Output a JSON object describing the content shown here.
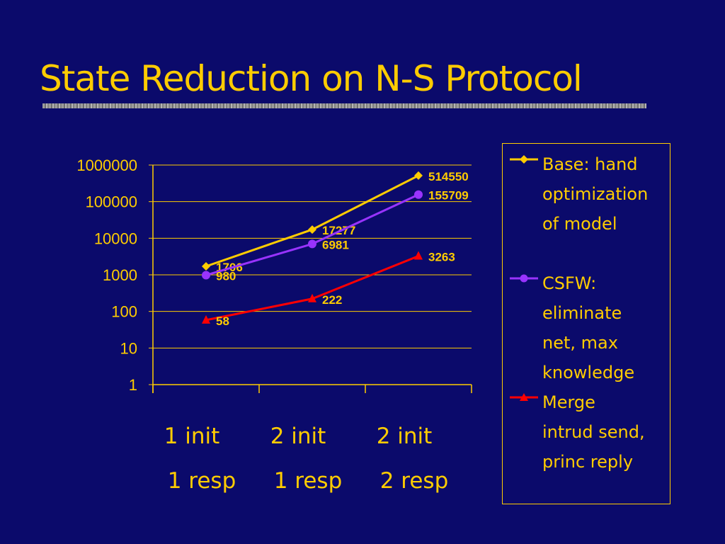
{
  "slide": {
    "title": "State Reduction on N-S Protocol"
  },
  "colors": {
    "background": "#0b0a6b",
    "text": "#ffcc00",
    "grid": "#ffcc00"
  },
  "chart_data": {
    "type": "line",
    "y_scale": "log",
    "ylim": [
      1,
      1000000
    ],
    "y_ticks": [
      "1000000",
      "100000",
      "10000",
      "1000",
      "100",
      "10",
      "1"
    ],
    "categories": [
      {
        "line1": "1 init",
        "line2": "1 resp"
      },
      {
        "line1": "2 init",
        "line2": "1 resp"
      },
      {
        "line1": "2 init",
        "line2": "2 resp"
      }
    ],
    "grid": true,
    "legend_position": "right",
    "series": [
      {
        "name": "Base: hand optimization of model",
        "legend_text": "Base: hand\noptimization\nof model",
        "values": [
          1706,
          17277,
          514550
        ],
        "labels": [
          "1706",
          "17277",
          "514550"
        ],
        "color": "#ffcc00",
        "marker": "diamond"
      },
      {
        "name": "CSFW: eliminate net, max knowledge",
        "legend_text": "CSFW:\neliminate\nnet, max\nknowledge",
        "values": [
          980,
          6981,
          155709
        ],
        "labels": [
          "980",
          "6981",
          "155709"
        ],
        "color": "#9933ff",
        "marker": "circle"
      },
      {
        "name": "Merge intrud send, princ reply",
        "legend_text": "Merge\nintrud send,\nprinc reply",
        "values": [
          58,
          222,
          3263
        ],
        "labels": [
          "58",
          "222",
          "3263"
        ],
        "color": "#ff0000",
        "marker": "triangle"
      }
    ]
  }
}
